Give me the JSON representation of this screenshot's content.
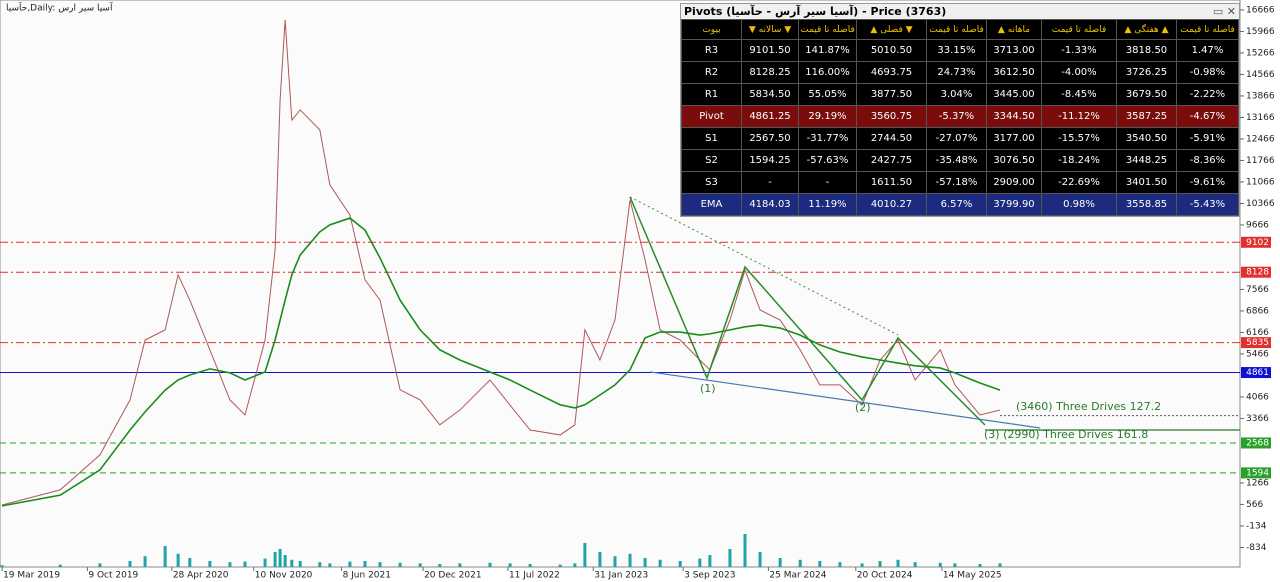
{
  "chart_data": {
    "type": "line",
    "title": "حآسیا,Daily:  آسیا سیر ارس",
    "x": [
      "2019-03-19",
      "2019-08-05",
      "2019-11-08",
      "2020-01-19",
      "2020-02-24",
      "2020-04-12",
      "2020-05-13",
      "2020-06-10",
      "2020-07-28",
      "2020-09-14",
      "2020-10-20",
      "2020-12-07",
      "2020-12-31",
      "2021-01-12",
      "2021-01-24",
      "2021-02-09",
      "2021-03-01",
      "2021-04-17",
      "2021-05-11",
      "2021-06-28",
      "2021-08-03",
      "2021-09-08",
      "2021-10-26",
      "2021-12-13",
      "2022-01-29",
      "2022-03-18",
      "2022-05-29",
      "2022-07-16",
      "2022-09-02",
      "2022-11-13",
      "2022-12-18",
      "2023-01-11",
      "2023-02-16",
      "2023-03-24",
      "2023-04-29",
      "2023-06-04",
      "2023-07-10",
      "2023-08-27",
      "2023-10-13",
      "2023-11-06",
      "2023-12-24",
      "2024-01-29",
      "2024-03-05",
      "2024-04-22",
      "2024-06-09",
      "2024-07-26",
      "2024-09-12",
      "2024-11-04",
      "2024-12-17",
      "2025-01-29",
      "2025-03-11",
      "2025-05-10",
      "2025-06-14",
      "2025-08-13",
      "2025-09-30"
    ],
    "series": [
      {
        "color": "#b05858",
        "values": [
          550,
          1040,
          2180,
          3970,
          5920,
          6250,
          8040,
          7220,
          5600,
          3970,
          3480,
          5920,
          8850,
          13740,
          16340,
          13080,
          13410,
          12760,
          10970,
          9990,
          7880,
          7220,
          4300,
          3970,
          3160,
          3640,
          4620,
          3800,
          2990,
          2830,
          3160,
          6250,
          5270,
          6570,
          10480,
          8530,
          6250,
          5920,
          5270,
          4950,
          6570,
          8200,
          6900,
          6570,
          5600,
          4460,
          4460,
          3800,
          5270,
          5920,
          4620,
          5600,
          4460,
          3480,
          3640
        ]
      },
      {
        "color": "#1a8c1a",
        "values": [
          520,
          870,
          1690,
          2990,
          3580,
          4290,
          4620,
          4780,
          4980,
          4850,
          4620,
          4880,
          5920,
          6570,
          7220,
          8040,
          8690,
          9440,
          9670,
          9890,
          9500,
          8590,
          7220,
          6250,
          5600,
          5270,
          4880,
          4620,
          4290,
          3810,
          3710,
          3810,
          4130,
          4460,
          4950,
          5990,
          6180,
          6180,
          6080,
          6120,
          6250,
          6350,
          6410,
          6310,
          6080,
          5760,
          5530,
          5370,
          5270,
          5170,
          5080,
          5010,
          4850,
          4520,
          4290
        ]
      }
    ],
    "volume": {
      "color": "#1fa3a3",
      "vlim": [
        0,
        100
      ],
      "values": [
        3,
        4,
        6,
        10,
        18,
        35,
        22,
        15,
        10,
        8,
        9,
        14,
        25,
        30,
        20,
        12,
        10,
        8,
        6,
        9,
        10,
        8,
        7,
        6,
        5,
        6,
        7,
        6,
        5,
        4,
        6,
        40,
        25,
        18,
        22,
        15,
        12,
        10,
        14,
        20,
        30,
        55,
        25,
        15,
        12,
        10,
        8,
        6,
        10,
        12,
        8,
        7,
        6,
        5,
        6
      ]
    },
    "xlim": [
      "2019-03-14",
      "2027-04-27"
    ],
    "xticks": [
      {
        "value": "2019-03-19",
        "label": "19 Mar 2019"
      },
      {
        "value": "2019-10-09",
        "label": "9 Oct 2019"
      },
      {
        "value": "2020-04-28",
        "label": "28 Apr 2020"
      },
      {
        "value": "2020-11-10",
        "label": "10 Nov 2020"
      },
      {
        "value": "2021-06-08",
        "label": "8 Jun 2021"
      },
      {
        "value": "2021-12-20",
        "label": "20 Dec 2021"
      },
      {
        "value": "2022-07-11",
        "label": "11 Jul 2022"
      },
      {
        "value": "2023-01-31",
        "label": "31 Jan 2023"
      },
      {
        "value": "2023-09-03",
        "label": "3 Sep 2023"
      },
      {
        "value": "2024-03-25",
        "label": "25 Mar 2024"
      },
      {
        "value": "2024-10-20",
        "label": "20 Oct 2024"
      },
      {
        "value": "2025-05-14",
        "label": "14 May 2025"
      }
    ],
    "ylim": [
      -1470,
      16990
    ],
    "yticks": [
      16666,
      15966,
      15266,
      14566,
      13866,
      13166,
      12466,
      11766,
      11066,
      10366,
      9666,
      7566,
      6866,
      6166,
      5466,
      4066,
      3366,
      1266,
      566,
      -134,
      -834
    ],
    "levels": [
      {
        "value": 9102,
        "color": "#e03030",
        "dash": "8 3 2 3"
      },
      {
        "value": 8128,
        "color": "#e03030",
        "dash": "8 3 2 3"
      },
      {
        "value": 5835,
        "color": "#e03030",
        "dash": "8 3 2 3"
      },
      {
        "value": 4861,
        "color": "#1010d0",
        "dash": "none"
      },
      {
        "value": 2568,
        "color": "#2aa02a",
        "dash": "6 4"
      },
      {
        "value": 1594,
        "color": "#2aa02a",
        "dash": "6 4"
      }
    ],
    "drawings": [
      {
        "color": "#2a8a2a",
        "dash": "none",
        "width": 1.5,
        "x": [
          "2023-04-29",
          "2023-10-30",
          "2024-01-29",
          "2024-11-04",
          "2025-01-29",
          "2025-08-25"
        ],
        "values": [
          10578,
          4685,
          8298,
          3968,
          5987,
          3154
        ]
      },
      {
        "color": "#3a8a3a",
        "dash": "2 3",
        "width": 1,
        "x": [
          "2023-04-29",
          "2025-01-29"
        ],
        "values": [
          10578,
          6084
        ]
      },
      {
        "color": "#4a7ab0",
        "dash": "none",
        "width": 1.2,
        "x": [
          "2023-06-16",
          "2026-01-04"
        ],
        "values": [
          4880,
          3056
        ]
      },
      {
        "color": "#2a7a2a",
        "dash": "none",
        "width": 1.2,
        "x": [
          "2025-08-25",
          "2027-04-27"
        ],
        "values": [
          2990,
          2990
        ]
      },
      {
        "color": "#555555",
        "dash": "2 2",
        "width": 1,
        "x": [
          "2025-09-30",
          "2027-04-27"
        ],
        "values": [
          3460,
          3460
        ]
      }
    ],
    "annotations": [
      "(3460) Three Drives 127.2",
      "(3) (2990) Three Drives 161.8",
      "(1)",
      "(2)"
    ]
  },
  "table": {
    "title": "Pivots (آسیا سیر آرس - حآسیا) - Price (3763)",
    "headers": [
      "بیوت",
      "▼ سالانه ▼",
      "فاصله تا قیمت",
      "▲ فصلی ▼",
      "فاصله تا قیمت",
      "▲ ماهانه",
      "فاصله تا قیمت",
      "▲ هفتگی ▲",
      "فاصله تا قیمت"
    ],
    "rows": [
      [
        "R3",
        "9101.50",
        "141.87%",
        "5010.50",
        "33.15%",
        "3713.00",
        "-1.33%",
        "3818.50",
        "1.47%"
      ],
      [
        "R2",
        "8128.25",
        "116.00%",
        "4693.75",
        "24.73%",
        "3612.50",
        "-4.00%",
        "3726.25",
        "-0.98%"
      ],
      [
        "R1",
        "5834.50",
        "55.05%",
        "3877.50",
        "3.04%",
        "3445.00",
        "-8.45%",
        "3679.50",
        "-2.22%"
      ],
      [
        "Pivot",
        "4861.25",
        "29.19%",
        "3560.75",
        "-5.37%",
        "3344.50",
        "-11.12%",
        "3587.25",
        "-4.67%"
      ],
      [
        "S1",
        "2567.50",
        "-31.77%",
        "2744.50",
        "-27.07%",
        "3177.00",
        "-15.57%",
        "3540.50",
        "-5.91%"
      ],
      [
        "S2",
        "1594.25",
        "-57.63%",
        "2427.75",
        "-35.48%",
        "3076.50",
        "-18.24%",
        "3448.25",
        "-8.36%"
      ],
      [
        "S3",
        "-",
        "-",
        "1611.50",
        "-57.18%",
        "2909.00",
        "-22.69%",
        "3401.50",
        "-9.61%"
      ],
      [
        "EMA",
        "4184.03",
        "11.19%",
        "4010.27",
        "6.57%",
        "3799.90",
        "0.98%",
        "3558.85",
        "-5.43%"
      ]
    ]
  }
}
